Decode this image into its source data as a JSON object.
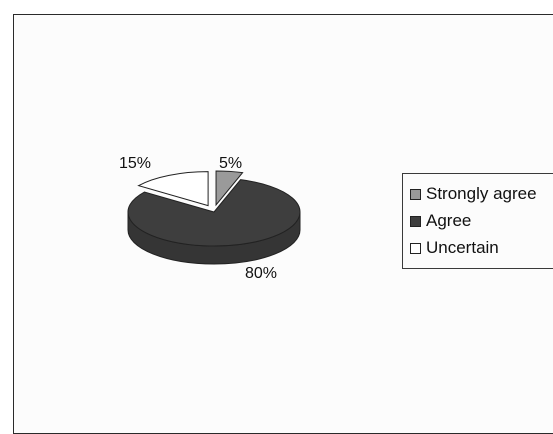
{
  "chart_data": {
    "type": "pie",
    "style": "3d",
    "categories": [
      "Strongly agree",
      "Agree",
      "Uncertain"
    ],
    "values": [
      5,
      80,
      15
    ],
    "data_labels": [
      "5%",
      "80%",
      "15%"
    ],
    "colors": [
      "#9a9a9a",
      "#3e3e3e",
      "#ffffff"
    ],
    "exploded": [
      "Strongly agree",
      "Uncertain"
    ],
    "legend_position": "right"
  }
}
